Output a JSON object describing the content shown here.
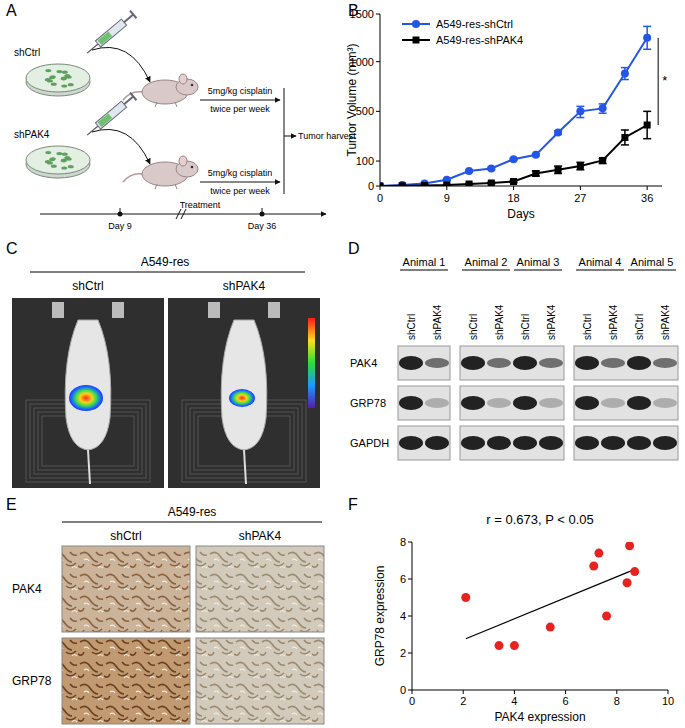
{
  "panel_labels": [
    "A",
    "B",
    "C",
    "D",
    "E",
    "F"
  ],
  "panels": {
    "A": {
      "dishes": [
        "shCtrl",
        "shPAK4"
      ],
      "treatment": [
        "5mg/kg cisplatin",
        "twice per week"
      ],
      "endpoint": "Tumor harvest",
      "timeline": [
        "Day 9",
        "Treatment",
        "Day 36"
      ]
    },
    "C": {
      "title": "A549-res",
      "groups": [
        "shCtrl",
        "shPAK4"
      ]
    },
    "D": {
      "groups": [
        [
          "Animal 1"
        ],
        [
          "Animal 2",
          "Animal 3"
        ],
        [
          "Animal 4",
          "Animal 5"
        ]
      ],
      "lanes": [
        "shCtrl",
        "shPAK4"
      ],
      "rows": [
        "PAK4",
        "GRP78",
        "GAPDH"
      ]
    },
    "E": {
      "title": "A549-res",
      "columns": [
        "shCtrl",
        "shPAK4"
      ],
      "rows": [
        "PAK4",
        "GRP78"
      ]
    }
  },
  "chart_data": [
    {
      "type": "line",
      "x_label": "Days",
      "y_label": "Tumor Volume (mm³)",
      "x": [
        0,
        3,
        6,
        9,
        12,
        15,
        18,
        21,
        24,
        27,
        30,
        33,
        36
      ],
      "series": [
        {
          "name": "A549-res-shCtrl",
          "color": "#2456e6",
          "marker": "circle",
          "values": [
            0,
            4,
            10,
            25,
            60,
            70,
            115,
            150,
            330,
            500,
            530,
            880,
            1250
          ],
          "errors": [
            0,
            1,
            2,
            3,
            4,
            5,
            6,
            8,
            15,
            50,
            45,
            60,
            120
          ]
        },
        {
          "name": "A549-res-shPAK4",
          "color": "#000000",
          "marker": "square",
          "values": [
            0,
            1,
            2,
            4,
            8,
            12,
            18,
            50,
            65,
            80,
            105,
            290,
            390
          ],
          "errors": [
            0,
            1,
            1,
            2,
            2,
            3,
            4,
            10,
            15,
            15,
            15,
            60,
            110
          ]
        }
      ],
      "xlim": [
        0,
        38
      ],
      "xticks": [
        0,
        9,
        18,
        27,
        36
      ],
      "ylim": [
        0,
        1500
      ],
      "yticks": [
        0,
        100,
        500,
        1000,
        1500
      ],
      "legend": "upper left",
      "annotations": [
        "*"
      ]
    },
    {
      "type": "scatter",
      "title": "r = 0.673, P < 0.05",
      "x_label": "PAK4 expression",
      "y_label": "GRP78 expression",
      "x": [
        2.1,
        3.4,
        4.0,
        5.4,
        7.1,
        7.3,
        7.6,
        8.4,
        8.5,
        8.7
      ],
      "values": [
        5.0,
        2.4,
        2.4,
        3.4,
        6.7,
        7.4,
        4.0,
        5.8,
        7.8,
        6.4
      ],
      "color": "#e8231f",
      "marker": "circle",
      "xlim": [
        0,
        10
      ],
      "xticks": [
        0,
        2,
        4,
        6,
        8,
        10
      ],
      "ylim": [
        0,
        8
      ],
      "yticks": [
        0,
        2,
        4,
        6,
        8
      ]
    }
  ]
}
